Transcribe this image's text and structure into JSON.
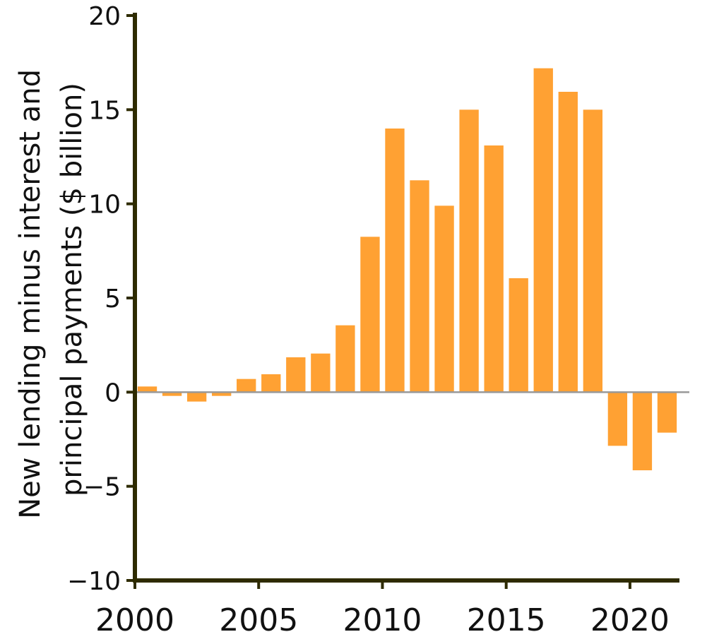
{
  "chart_data": {
    "type": "bar",
    "title": "",
    "xlabel": "",
    "ylabel": "New lending minus interest and principal payments ($ billion)",
    "ylabel_lines": [
      "New lending minus interest and",
      "principal payments ($ billion)"
    ],
    "x": [
      2000,
      2001,
      2002,
      2003,
      2004,
      2005,
      2006,
      2007,
      2008,
      2009,
      2010,
      2011,
      2012,
      2013,
      2014,
      2015,
      2016,
      2017,
      2018,
      2019,
      2020,
      2021
    ],
    "values": [
      0.3,
      -0.2,
      -0.5,
      -0.2,
      0.7,
      0.95,
      1.85,
      2.05,
      3.55,
      8.25,
      14.0,
      11.25,
      9.9,
      15.0,
      13.1,
      6.05,
      17.2,
      15.95,
      15.0,
      -2.85,
      -4.15,
      -2.15
    ],
    "xlim": [
      2000,
      2022
    ],
    "ylim": [
      -10,
      20
    ],
    "xticks": [
      2000,
      2005,
      2010,
      2015,
      2020
    ],
    "xtick_labels": [
      "2000",
      "2005",
      "2010",
      "2015",
      "2020"
    ],
    "yticks": [
      -10,
      -5,
      0,
      5,
      10,
      15,
      20
    ],
    "ytick_labels": [
      "−10",
      "−5",
      "0",
      "5",
      "10",
      "15",
      "20"
    ],
    "grid": false,
    "legend": "none",
    "colors": {
      "bar": "#ffa133",
      "axis": "#2e2b00",
      "zero_line": "#999999",
      "text": "#111111"
    }
  }
}
